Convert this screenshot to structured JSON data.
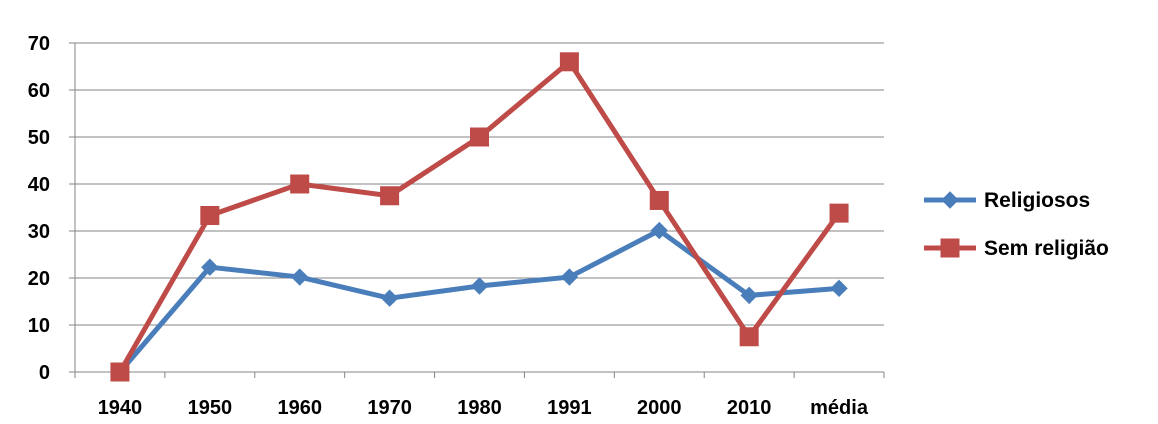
{
  "chart_data": {
    "type": "line",
    "categories": [
      "1940",
      "1950",
      "1960",
      "1970",
      "1980",
      "1991",
      "2000",
      "2010",
      "média"
    ],
    "series": [
      {
        "name": "Religiosos",
        "color": "#4a7ebb",
        "marker": "diamond",
        "values": [
          0,
          22.3,
          20.2,
          15.7,
          18.3,
          20.2,
          30.1,
          16.3,
          17.8
        ]
      },
      {
        "name": "Sem religião",
        "color": "#be4b48",
        "marker": "square",
        "values": [
          0,
          33.3,
          40,
          37.5,
          50,
          66,
          36.5,
          7.5,
          33.8
        ]
      }
    ],
    "ylim": [
      0,
      70
    ],
    "yticks": [
      0,
      10,
      20,
      30,
      40,
      50,
      60,
      70
    ],
    "grid": true,
    "legend": "right"
  }
}
